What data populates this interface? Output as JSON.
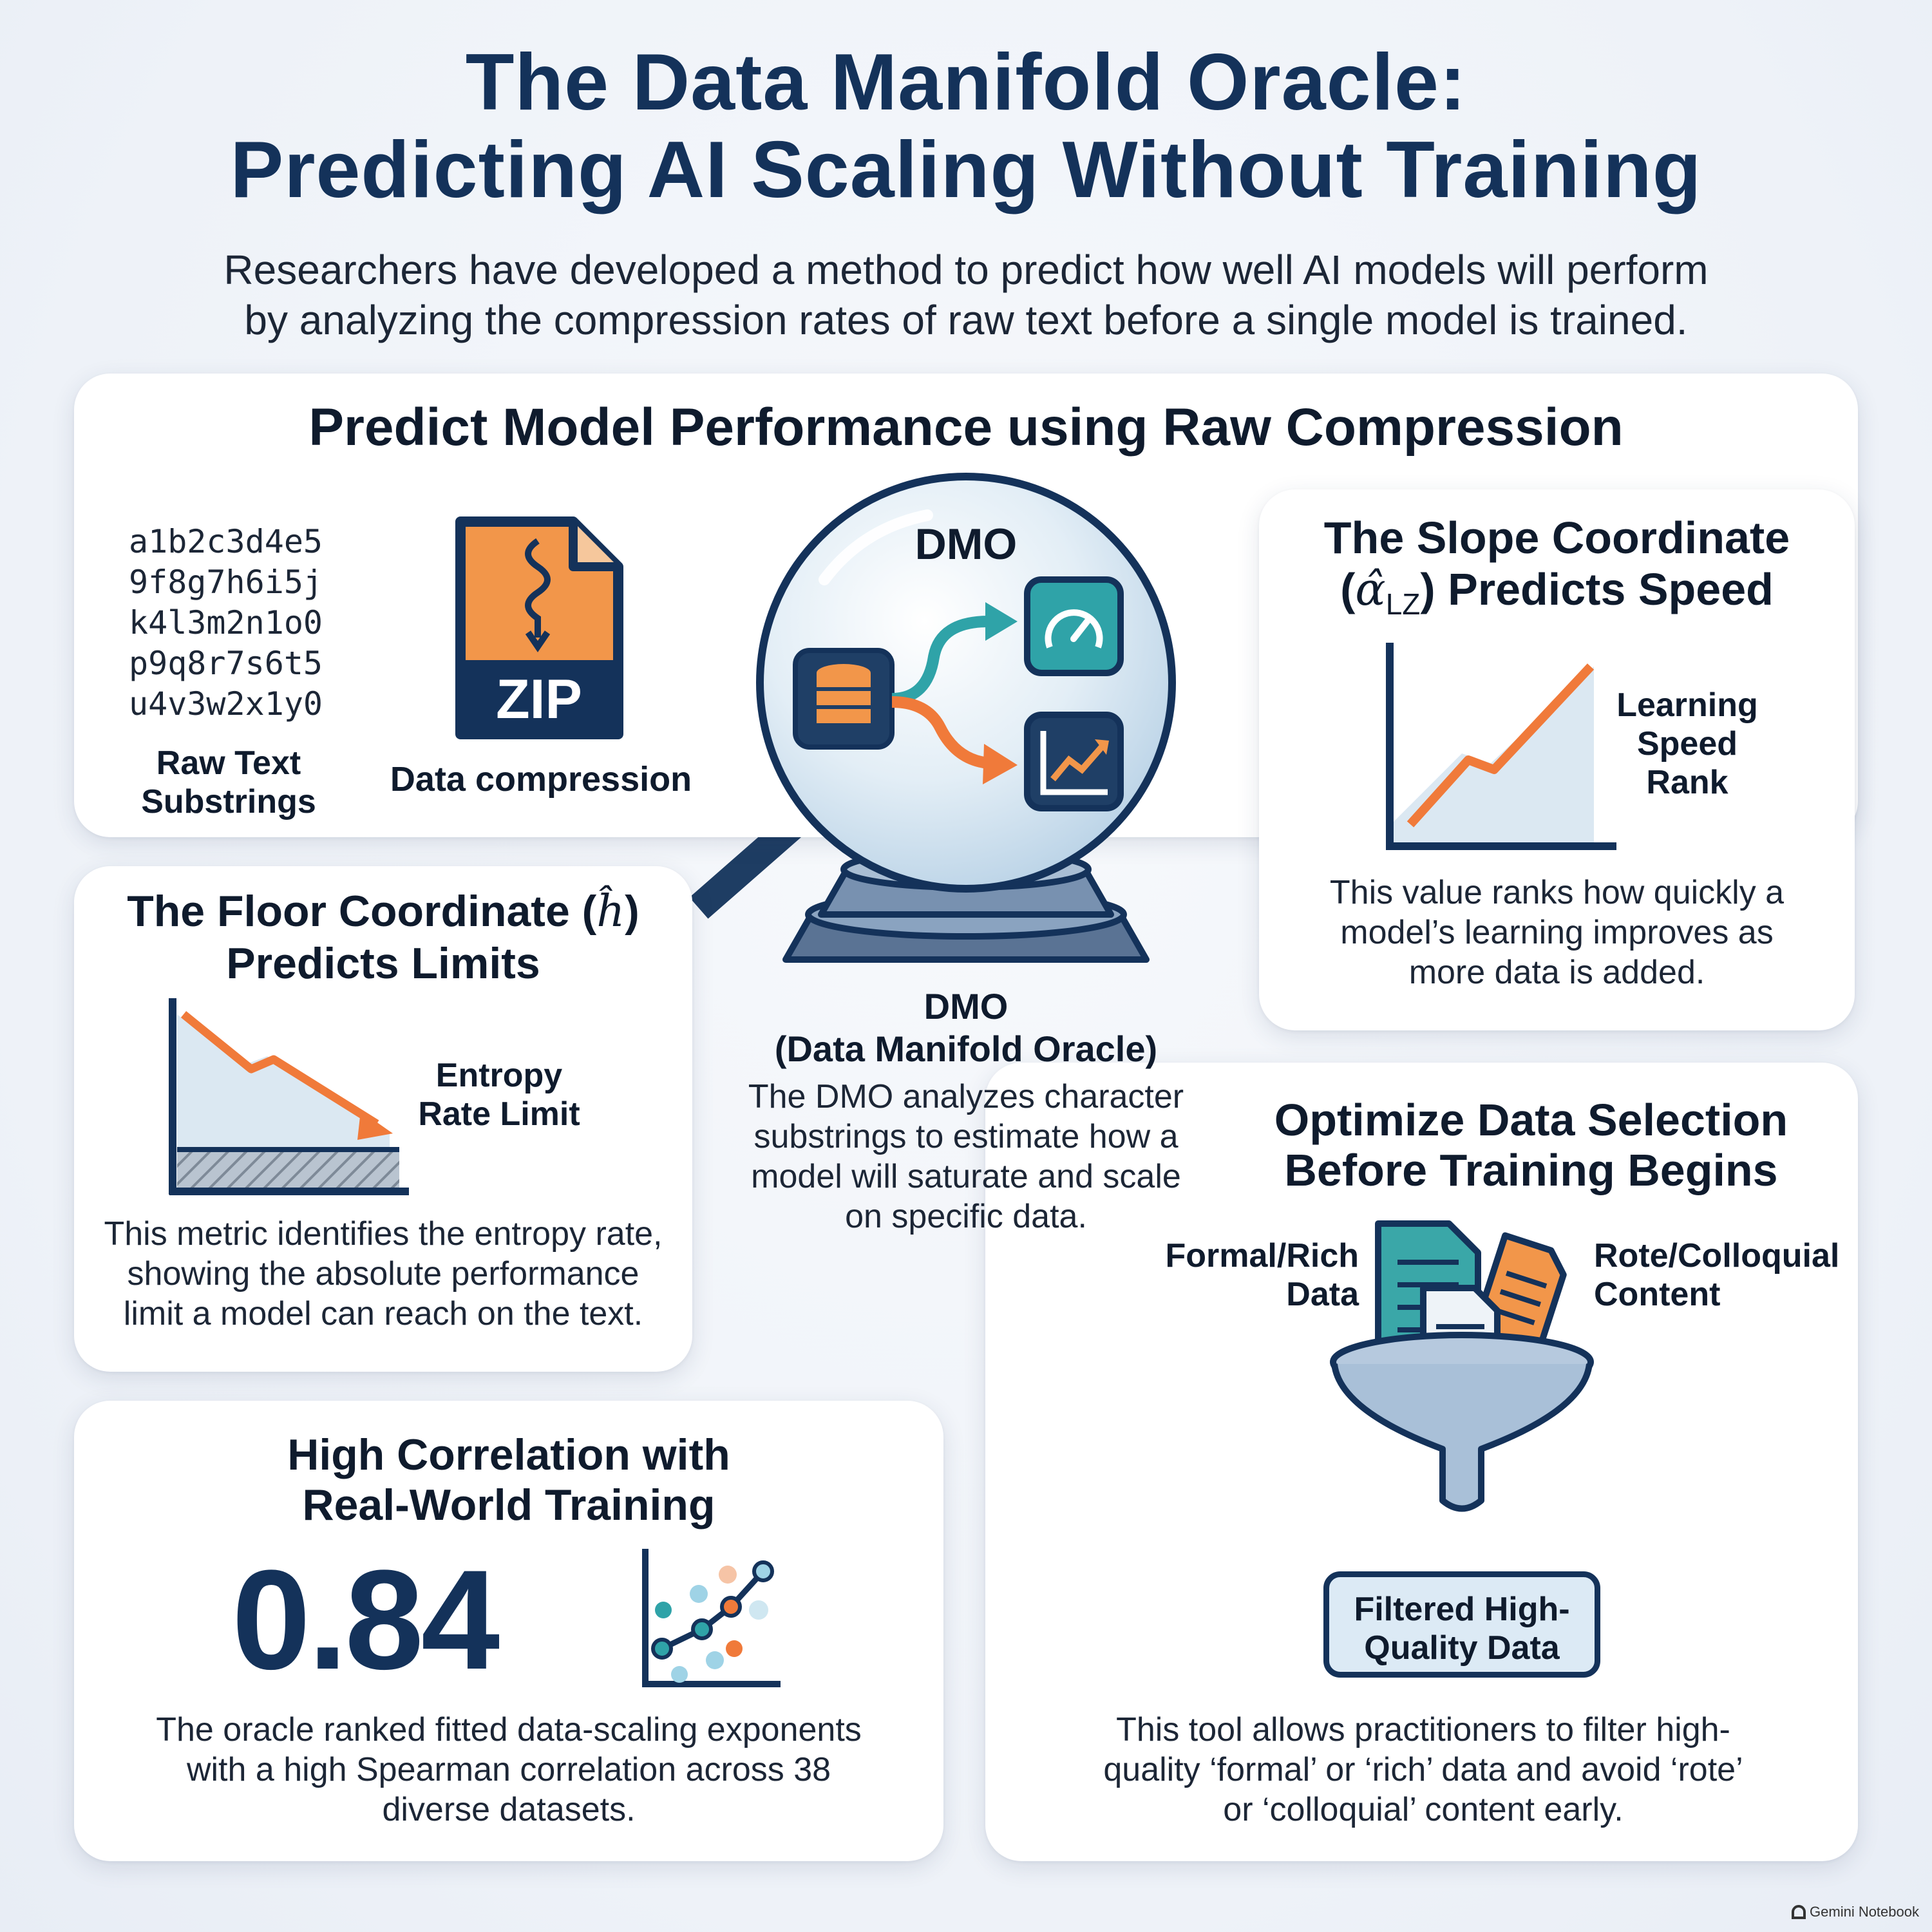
{
  "header": {
    "title_line1": "The Data Manifold Oracle:",
    "title_line2": "Predicting AI Scaling Without Training",
    "subtitle_line1": "Researchers have developed a method to predict how well AI models will perform",
    "subtitle_line2": "by analyzing the compression rates of raw text before a single model is trained."
  },
  "compression": {
    "heading": "Predict Model Performance using Raw Compression",
    "substrings": [
      "a1b2c3d4e5",
      "9f8g7h6i5j",
      "k4l3m2n1o0",
      "p9q8r7s6t5",
      "u4v3w2x1y0"
    ],
    "substrings_label_1": "Raw Text",
    "substrings_label_2": "Substrings",
    "zip_text": "ZIP",
    "zip_label": "Data compression"
  },
  "oracle": {
    "globe_label": "DMO",
    "name_line1": "DMO",
    "name_line2": "(Data Manifold Oracle)",
    "desc_line1": "The DMO analyzes character",
    "desc_line2": "substrings to estimate how a",
    "desc_line3": "model will saturate and scale",
    "desc_line4": "on specific data."
  },
  "slope": {
    "heading_line1": "The Slope Coordinate",
    "heading_line2_pre": "(",
    "heading_symbol": "α̂",
    "heading_subscript": "LZ",
    "heading_line2_post": ") Predicts Speed",
    "chart_label_1": "Learning",
    "chart_label_2": "Speed",
    "chart_label_3": "Rank",
    "desc_line1": "This value ranks how quickly a",
    "desc_line2": "model’s learning improves as",
    "desc_line3": "more data is added."
  },
  "floor": {
    "heading_line1_pre": "The Floor Coordinate (",
    "heading_symbol": "ĥ",
    "heading_line1_post": ")",
    "heading_line2": "Predicts Limits",
    "chart_label_1": "Entropy",
    "chart_label_2": "Rate Limit",
    "desc_line1": "This metric identifies the entropy rate,",
    "desc_line2": "showing the absolute performance",
    "desc_line3": "limit a model can reach on the text."
  },
  "correlation": {
    "heading_line1": "High Correlation with",
    "heading_line2": "Real-World Training",
    "value": "0.84",
    "desc_line1": "The oracle ranked fitted data-scaling exponents",
    "desc_line2": "with a high Spearman correlation across 38",
    "desc_line3": "diverse datasets."
  },
  "selection": {
    "heading_line1": "Optimize Data Selection",
    "heading_line2": "Before Training Begins",
    "left_label_1": "Formal/Rich",
    "left_label_2": "Data",
    "right_label_1": "Rote/Colloquial",
    "right_label_2": "Content",
    "badge_line1": "Filtered High-",
    "badge_line2": "Quality Data",
    "desc_line1": "This tool allows practitioners to filter high-",
    "desc_line2": "quality ‘formal’ or ‘rich’ data and avoid ‘rote’",
    "desc_line3": "or ‘colloquial’ content early."
  },
  "footer": {
    "brand": "Gemini Notebook"
  },
  "colors": {
    "navy": "#14325a",
    "orange": "#f07a3a",
    "teal": "#2fa3a8",
    "light_blue": "#dde9f3"
  }
}
